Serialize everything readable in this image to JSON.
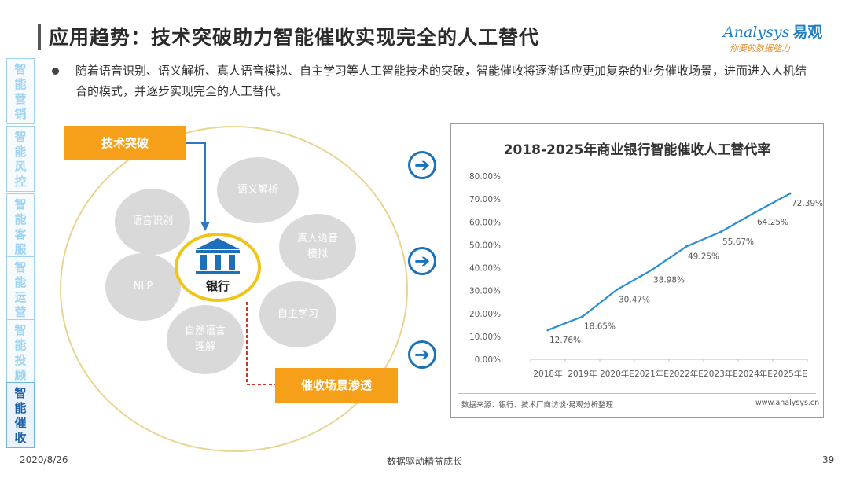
{
  "header": {
    "title": "应用趋势：技术突破助力智能催收实现完全的人工替代",
    "logo_main": "Analysys",
    "logo_brand": "易观",
    "logo_sub": "你要的数据能力"
  },
  "sidebar": {
    "items": [
      {
        "label": "智能营销"
      },
      {
        "label": "智能风控"
      },
      {
        "label": "智能客服"
      },
      {
        "label": "智能运营"
      },
      {
        "label": "智能投顾"
      },
      {
        "label": "智能催收"
      }
    ]
  },
  "bullet": {
    "text": "随着语音识别、语义解析、真人语音模拟、自主学习等人工智能技术的突破，智能催收将逐渐适应更加复杂的业务催收场景，进而进入人机结合的模式，并逐步实现完全的人工替代。"
  },
  "diagram": {
    "tech_breakthrough": "技术突破",
    "scene_penetration": "催收场景渗透",
    "bank": "银行",
    "bubbles": [
      {
        "label": "语音识别"
      },
      {
        "label": "语义解析"
      },
      {
        "label": "真人语音模拟"
      },
      {
        "label": "NLP"
      },
      {
        "label": "自主学习"
      },
      {
        "label": "自然语言理解"
      }
    ],
    "arrow_glyph": "➔"
  },
  "chart_data": {
    "type": "line",
    "title": "2018-2025年商业银行智能催收人工替代率",
    "categories": [
      "2018年",
      "2019年",
      "2020年E",
      "2021年E",
      "2022年E",
      "2023年E",
      "2024年E",
      "2025年E"
    ],
    "series": [
      {
        "values": [
          12.76,
          18.65,
          30.47,
          38.98,
          49.25,
          55.67,
          64.25,
          72.39
        ],
        "labels": [
          "12.76%",
          "18.65%",
          "30.47%",
          "38.98%",
          "49.25%",
          "55.67%",
          "64.25%",
          "72.39%"
        ]
      }
    ],
    "y_ticks": [
      "0.00%",
      "10.00%",
      "20.00%",
      "30.00%",
      "40.00%",
      "50.00%",
      "60.00%",
      "70.00%",
      "80.00%"
    ],
    "ylim": [
      0,
      80
    ],
    "grid": false,
    "line_color": "#2e8fd0",
    "source": "数据来源：银行、技术厂商访谈·易观分析整理",
    "url": "www.analysys.cn"
  },
  "footer": {
    "date": "2020/8/26",
    "slogan": "数据驱动精益成长",
    "page": "39"
  },
  "colors": {
    "accent_orange": "#f6a01a",
    "brand_blue": "#1a73b8",
    "bubble_gray": "#d9d9d9",
    "bank_ring": "#f0c419"
  }
}
